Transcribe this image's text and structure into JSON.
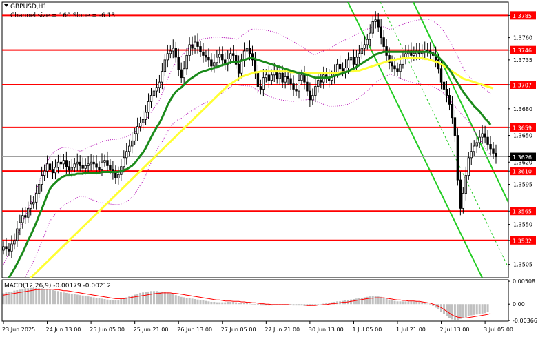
{
  "chart_data": {
    "type": "candlestick",
    "symbol_label": "GBPUSD,H1",
    "channel_label": "Channel size = 160  Slope = -6.13",
    "macd_label": "MACD(12,26,9) -0.00179 -0.00212",
    "colors": {
      "level_line": "#ff0000",
      "level_label_bg": "#ff0000",
      "level_label_text": "#ffffff",
      "ma_fast": "#1a8a1a",
      "ma_slow": "#ffff33",
      "channel": "#22cc22",
      "bollinger": "#b000b0",
      "candles": "#000000",
      "macd_hist": "#c0c0c0",
      "macd_signal": "#ff0000"
    },
    "price_axis": {
      "ylim": [
        1.349,
        1.38
      ],
      "ticks": [
        1.3785,
        1.376,
        1.3746,
        1.3735,
        1.3707,
        1.368,
        1.3659,
        1.365,
        1.3626,
        1.362,
        1.361,
        1.3595,
        1.3565,
        1.355,
        1.3532,
        1.3505
      ],
      "tick_labels": [
        "1.3785",
        "1.3760",
        "1.3746",
        "1.3735",
        "1.3707",
        "1.3680",
        "1.3659",
        "1.3650",
        "1.3626",
        "1.3620",
        "1.3610",
        "1.3595",
        "1.3565",
        "1.3550",
        "1.3532",
        "1.3505"
      ]
    },
    "levels": [
      {
        "value": 1.3785,
        "label": "1.3785"
      },
      {
        "value": 1.3746,
        "label": "1.3746"
      },
      {
        "value": 1.3707,
        "label": "1.3707"
      },
      {
        "value": 1.3659,
        "label": "1.3659"
      },
      {
        "value": 1.361,
        "label": "1.3610"
      },
      {
        "value": 1.3565,
        "label": "1.3565"
      },
      {
        "value": 1.3532,
        "label": "1.3532"
      }
    ],
    "current_price": {
      "value": 1.3626,
      "label": "1.3626"
    },
    "macd_axis": {
      "ylim": [
        -0.0038,
        0.0054
      ],
      "ticks": [
        0.00508,
        0.0,
        -0.00366
      ],
      "tick_labels": [
        "0.00508",
        "0.00",
        "-0.00366"
      ]
    },
    "time_axis": {
      "labels": [
        "23 Jun 2025",
        "24 Jun 13:00",
        "25 Jun 05:00",
        "25 Jun 21:00",
        "26 Jun 13:00",
        "27 Jun 05:00",
        "27 Jun 21:00",
        "30 Jun 13:00",
        "1 Jul 05:00",
        "1 Jul 21:00",
        "2 Jul 13:00",
        "3 Jul 05:00"
      ],
      "label_index": [
        0,
        16,
        32,
        48,
        64,
        80,
        96,
        112,
        128,
        144,
        160,
        176
      ]
    },
    "closes": [
      1.3525,
      1.3522,
      1.352,
      1.3528,
      1.3532,
      1.3545,
      1.3552,
      1.356,
      1.3558,
      1.3568,
      1.3573,
      1.3575,
      1.3585,
      1.3595,
      1.3605,
      1.361,
      1.3618,
      1.3612,
      1.3608,
      1.3614,
      1.362,
      1.3618,
      1.3622,
      1.3615,
      1.3611,
      1.3614,
      1.3618,
      1.362,
      1.3616,
      1.3613,
      1.3616,
      1.3618,
      1.362,
      1.3618,
      1.3614,
      1.3612,
      1.362,
      1.3622,
      1.3616,
      1.3612,
      1.3608,
      1.3602,
      1.3606,
      1.3615,
      1.3625,
      1.3632,
      1.3638,
      1.3644,
      1.3652,
      1.366,
      1.3664,
      1.3668,
      1.3676,
      1.3688,
      1.3695,
      1.37,
      1.3704,
      1.371,
      1.3722,
      1.3735,
      1.3742,
      1.3745,
      1.3748,
      1.3738,
      1.3724,
      1.3715,
      1.3725,
      1.374,
      1.3752,
      1.3748,
      1.3755,
      1.375,
      1.3744,
      1.374,
      1.3738,
      1.3735,
      1.3728,
      1.3732,
      1.3738,
      1.3741,
      1.3735,
      1.373,
      1.3736,
      1.3742,
      1.374,
      1.373,
      1.372,
      1.3735,
      1.3745,
      1.3748,
      1.3742,
      1.3735,
      1.372,
      1.3705,
      1.3702,
      1.3715,
      1.3718,
      1.3712,
      1.3718,
      1.3722,
      1.3714,
      1.372,
      1.371,
      1.3716,
      1.3714,
      1.3708,
      1.3702,
      1.37,
      1.3712,
      1.3718,
      1.371,
      1.37,
      1.369,
      1.3695,
      1.3705,
      1.3712,
      1.371,
      1.3718,
      1.3715,
      1.3712,
      1.3716,
      1.372,
      1.373,
      1.3725,
      1.3722,
      1.3726,
      1.3735,
      1.3738,
      1.373,
      1.3738,
      1.3742,
      1.3748,
      1.3752,
      1.3758,
      1.3765,
      1.3778,
      1.378,
      1.3772,
      1.376,
      1.375,
      1.374,
      1.3732,
      1.3728,
      1.3725,
      1.3722,
      1.373,
      1.3738,
      1.3742,
      1.3745,
      1.374,
      1.3742,
      1.3745,
      1.3742,
      1.3744,
      1.3746,
      1.3745,
      1.3743,
      1.374,
      1.3735,
      1.3725,
      1.371,
      1.3702,
      1.3695,
      1.3685,
      1.367,
      1.365,
      1.36,
      1.3568,
      1.3585,
      1.3605,
      1.3625,
      1.3632,
      1.3638,
      1.3642,
      1.3648,
      1.3652,
      1.3648,
      1.364,
      1.3635,
      1.363,
      1.3626
    ],
    "ma_fast": [
      1.348,
      1.3485,
      1.349,
      1.3495,
      1.35,
      1.3506,
      1.3512,
      1.3518,
      1.3525,
      1.3532,
      1.3538,
      1.3545,
      1.3552,
      1.356,
      1.3567,
      1.3575,
      1.3583,
      1.359,
      1.3594,
      1.3597,
      1.36,
      1.3602,
      1.3604,
      1.3605,
      1.3605,
      1.3606,
      1.3606,
      1.3607,
      1.3607,
      1.3607,
      1.3608,
      1.3608,
      1.3608,
      1.3608,
      1.3608,
      1.3608,
      1.3609,
      1.3609,
      1.3609,
      1.3609,
      1.3609,
      1.3609,
      1.3609,
      1.361,
      1.3611,
      1.3612,
      1.3614,
      1.3616,
      1.3619,
      1.3623,
      1.3627,
      1.3631,
      1.3636,
      1.3642,
      1.3648,
      1.3654,
      1.3659,
      1.3664,
      1.367,
      1.3677,
      1.3684,
      1.369,
      1.3695,
      1.3699,
      1.3702,
      1.3704,
      1.3707,
      1.371,
      1.3713,
      1.3715,
      1.3717,
      1.3719,
      1.3721,
      1.3722,
      1.3723,
      1.3724,
      1.3725,
      1.3726,
      1.3727,
      1.3728,
      1.3729,
      1.373,
      1.3731,
      1.3732,
      1.3733,
      1.3733,
      1.3733,
      1.3734,
      1.3735,
      1.3736,
      1.3737,
      1.3737,
      1.3736,
      1.3735,
      1.3734,
      1.3733,
      1.3732,
      1.3731,
      1.373,
      1.3729,
      1.3728,
      1.3727,
      1.3726,
      1.3725,
      1.3724,
      1.3723,
      1.3722,
      1.3721,
      1.372,
      1.372,
      1.3719,
      1.3718,
      1.3717,
      1.3716,
      1.3715,
      1.3715,
      1.3715,
      1.3715,
      1.3715,
      1.3715,
      1.3716,
      1.3717,
      1.3718,
      1.3719,
      1.372,
      1.3721,
      1.3722,
      1.3724,
      1.3725,
      1.3727,
      1.3729,
      1.3731,
      1.3733,
      1.3735,
      1.3737,
      1.3739,
      1.3741,
      1.3742,
      1.3743,
      1.3744,
      1.3744,
      1.3744,
      1.3744,
      1.3744,
      1.3744,
      1.3744,
      1.3744,
      1.3744,
      1.3744,
      1.3744,
      1.3744,
      1.3744,
      1.3744,
      1.3744,
      1.3744,
      1.3744,
      1.3743,
      1.3742,
      1.374,
      1.3738,
      1.3735,
      1.3732,
      1.3728,
      1.3724,
      1.3719,
      1.3714,
      1.3709,
      1.3704,
      1.3699,
      1.3695,
      1.3691,
      1.3687,
      1.3683,
      1.368,
      1.3677,
      1.3673,
      1.3669,
      1.3666,
      1.3662
    ],
    "ma_slow": [
      1.346,
      1.3463,
      1.3466,
      1.3469,
      1.3472,
      1.3475,
      1.3478,
      1.3481,
      1.3484,
      1.3487,
      1.349,
      1.3493,
      1.3496,
      1.3499,
      1.3502,
      1.3505,
      1.3508,
      1.3511,
      1.3514,
      1.3517,
      1.352,
      1.3523,
      1.3526,
      1.3529,
      1.3532,
      1.3535,
      1.3538,
      1.3541,
      1.3544,
      1.3547,
      1.355,
      1.3553,
      1.3556,
      1.3559,
      1.3562,
      1.3565,
      1.3568,
      1.3571,
      1.3574,
      1.3577,
      1.358,
      1.3583,
      1.3586,
      1.3589,
      1.3592,
      1.3595,
      1.3598,
      1.3601,
      1.3604,
      1.3607,
      1.361,
      1.3613,
      1.3616,
      1.3619,
      1.3622,
      1.3625,
      1.3628,
      1.3631,
      1.3634,
      1.3637,
      1.364,
      1.3643,
      1.3646,
      1.3649,
      1.3652,
      1.3655,
      1.3658,
      1.3661,
      1.3664,
      1.3667,
      1.367,
      1.3673,
      1.3676,
      1.3679,
      1.3682,
      1.3685,
      1.3688,
      1.3691,
      1.3694,
      1.3697,
      1.37,
      1.3703,
      1.3706,
      1.3708,
      1.371,
      1.3712,
      1.3714,
      1.3716,
      1.3717,
      1.3718,
      1.3719,
      1.372,
      1.3721,
      1.3721,
      1.3722,
      1.3722,
      1.3722,
      1.3722,
      1.3722,
      1.3722,
      1.3722,
      1.3722,
      1.3722,
      1.3722,
      1.3722,
      1.3721,
      1.3721,
      1.3721,
      1.372,
      1.372,
      1.372,
      1.372,
      1.372,
      1.372,
      1.372,
      1.372,
      1.372,
      1.372,
      1.372,
      1.372,
      1.372,
      1.372,
      1.372,
      1.3721,
      1.3721,
      1.3721,
      1.3722,
      1.3722,
      1.3722,
      1.3723,
      1.3723,
      1.3724,
      1.3725,
      1.3726,
      1.3727,
      1.3728,
      1.3729,
      1.373,
      1.3731,
      1.3732,
      1.3733,
      1.3734,
      1.3735,
      1.3735,
      1.3736,
      1.3736,
      1.3737,
      1.3737,
      1.3737,
      1.3737,
      1.3737,
      1.3737,
      1.3737,
      1.3737,
      1.3736,
      1.3736,
      1.3735,
      1.3734,
      1.3733,
      1.3732,
      1.373,
      1.3728,
      1.3726,
      1.3724,
      1.3722,
      1.372,
      1.3718,
      1.3716,
      1.3714,
      1.3713,
      1.3712,
      1.3711,
      1.371,
      1.3709,
      1.3708,
      1.3707,
      1.3706,
      1.3705,
      1.3704,
      1.3703
    ],
    "macd_hist": [
      0.0024,
      0.0026,
      0.0027,
      0.0028,
      0.003,
      0.0031,
      0.0032,
      0.0034,
      0.0035,
      0.0035,
      0.0036,
      0.0036,
      0.0036,
      0.0035,
      0.0035,
      0.0034,
      0.0033,
      0.0032,
      0.0031,
      0.003,
      0.0029,
      0.0028,
      0.0026,
      0.0025,
      0.0024,
      0.0023,
      0.0022,
      0.0021,
      0.002,
      0.0019,
      0.0018,
      0.0017,
      0.0016,
      0.0015,
      0.0014,
      0.0013,
      0.0012,
      0.0011,
      0.001,
      0.0009,
      0.0008,
      0.0008,
      0.0009,
      0.0011,
      0.0013,
      0.0015,
      0.0017,
      0.0019,
      0.0021,
      0.0023,
      0.0025,
      0.0026,
      0.0027,
      0.0028,
      0.0029,
      0.0029,
      0.0029,
      0.0028,
      0.0028,
      0.0027,
      0.0026,
      0.0024,
      0.0022,
      0.002,
      0.0018,
      0.0016,
      0.0015,
      0.0014,
      0.0013,
      0.0012,
      0.0011,
      0.001,
      0.0009,
      0.0008,
      0.0007,
      0.0006,
      0.0005,
      0.0005,
      0.0004,
      0.0004,
      0.0004,
      0.0004,
      0.0005,
      0.0005,
      0.0005,
      0.0004,
      0.0003,
      0.0002,
      0.0002,
      0.0002,
      0.0001,
      0.0,
      -0.0001,
      -0.0002,
      -0.0003,
      -0.0003,
      -0.0003,
      -0.0003,
      -0.0003,
      -0.0002,
      -0.0002,
      -0.0002,
      -0.0002,
      -0.0002,
      -0.0002,
      -0.0002,
      -0.0003,
      -0.0003,
      -0.0003,
      -0.0003,
      -0.0004,
      -0.0004,
      -0.0004,
      -0.0003,
      -0.0002,
      -0.0001,
      0.0,
      0.0001,
      0.0002,
      0.0003,
      0.0004,
      0.0005,
      0.0006,
      0.0006,
      0.0007,
      0.0008,
      0.0009,
      0.001,
      0.0011,
      0.0012,
      0.0013,
      0.0014,
      0.0015,
      0.0016,
      0.0017,
      0.0018,
      0.0018,
      0.0017,
      0.0016,
      0.0014,
      0.0012,
      0.001,
      0.0008,
      0.0007,
      0.0006,
      0.0006,
      0.0006,
      0.0006,
      0.0006,
      0.0006,
      0.0006,
      0.0006,
      0.0005,
      0.0004,
      0.0003,
      0.0001,
      -0.0001,
      -0.0004,
      -0.0008,
      -0.0012,
      -0.0017,
      -0.0022,
      -0.0027,
      -0.0031,
      -0.0034,
      -0.0036,
      -0.0035,
      -0.0033,
      -0.0031,
      -0.0029,
      -0.0027,
      -0.0025,
      -0.0024,
      -0.0023,
      -0.0022,
      -0.0021,
      -0.002,
      -0.0018
    ],
    "macd_signal": [
      0.002,
      0.0021,
      0.0022,
      0.0023,
      0.0024,
      0.0025,
      0.0026,
      0.0027,
      0.0028,
      0.0029,
      0.003,
      0.0031,
      0.0032,
      0.0032,
      0.0033,
      0.0033,
      0.0033,
      0.0033,
      0.0033,
      0.0032,
      0.0032,
      0.0031,
      0.003,
      0.003,
      0.0029,
      0.0028,
      0.0027,
      0.0026,
      0.0025,
      0.0024,
      0.0023,
      0.0022,
      0.0021,
      0.002,
      0.0019,
      0.0018,
      0.0017,
      0.0016,
      0.0015,
      0.0014,
      0.0013,
      0.0012,
      0.0012,
      0.0012,
      0.0012,
      0.0013,
      0.0014,
      0.0015,
      0.0016,
      0.0017,
      0.0018,
      0.0019,
      0.002,
      0.0021,
      0.0022,
      0.0023,
      0.0024,
      0.0024,
      0.0025,
      0.0025,
      0.0025,
      0.0025,
      0.0024,
      0.0024,
      0.0023,
      0.0022,
      0.0021,
      0.002,
      0.0019,
      0.0018,
      0.0017,
      0.0016,
      0.0015,
      0.0014,
      0.0013,
      0.0012,
      0.0011,
      0.001,
      0.0009,
      0.0009,
      0.0008,
      0.0007,
      0.0007,
      0.0007,
      0.0006,
      0.0006,
      0.0006,
      0.0005,
      0.0005,
      0.0004,
      0.0004,
      0.0003,
      0.0003,
      0.0002,
      0.0001,
      0.0001,
      0.0,
      0.0,
      -0.0001,
      -0.0001,
      -0.0001,
      -0.0001,
      -0.0001,
      -0.0001,
      -0.0001,
      -0.0002,
      -0.0002,
      -0.0002,
      -0.0002,
      -0.0002,
      -0.0002,
      -0.0003,
      -0.0003,
      -0.0003,
      -0.0003,
      -0.0002,
      -0.0002,
      -0.0001,
      -0.0001,
      0.0,
      0.0001,
      0.0001,
      0.0002,
      0.0003,
      0.0004,
      0.0004,
      0.0005,
      0.0006,
      0.0007,
      0.0008,
      0.0009,
      0.001,
      0.0011,
      0.0012,
      0.0013,
      0.0013,
      0.0014,
      0.0014,
      0.0014,
      0.0014,
      0.0013,
      0.0012,
      0.0011,
      0.001,
      0.0009,
      0.0009,
      0.0008,
      0.0008,
      0.0007,
      0.0007,
      0.0007,
      0.0006,
      0.0006,
      0.0005,
      0.0004,
      0.0003,
      0.0002,
      0.0,
      -0.0002,
      -0.0005,
      -0.0008,
      -0.0012,
      -0.0016,
      -0.002,
      -0.0024,
      -0.0027,
      -0.0029,
      -0.003,
      -0.0031,
      -0.0031,
      -0.003,
      -0.0029,
      -0.0028,
      -0.0027,
      -0.0026,
      -0.0025,
      -0.0024,
      -0.0023,
      -0.0021
    ]
  }
}
